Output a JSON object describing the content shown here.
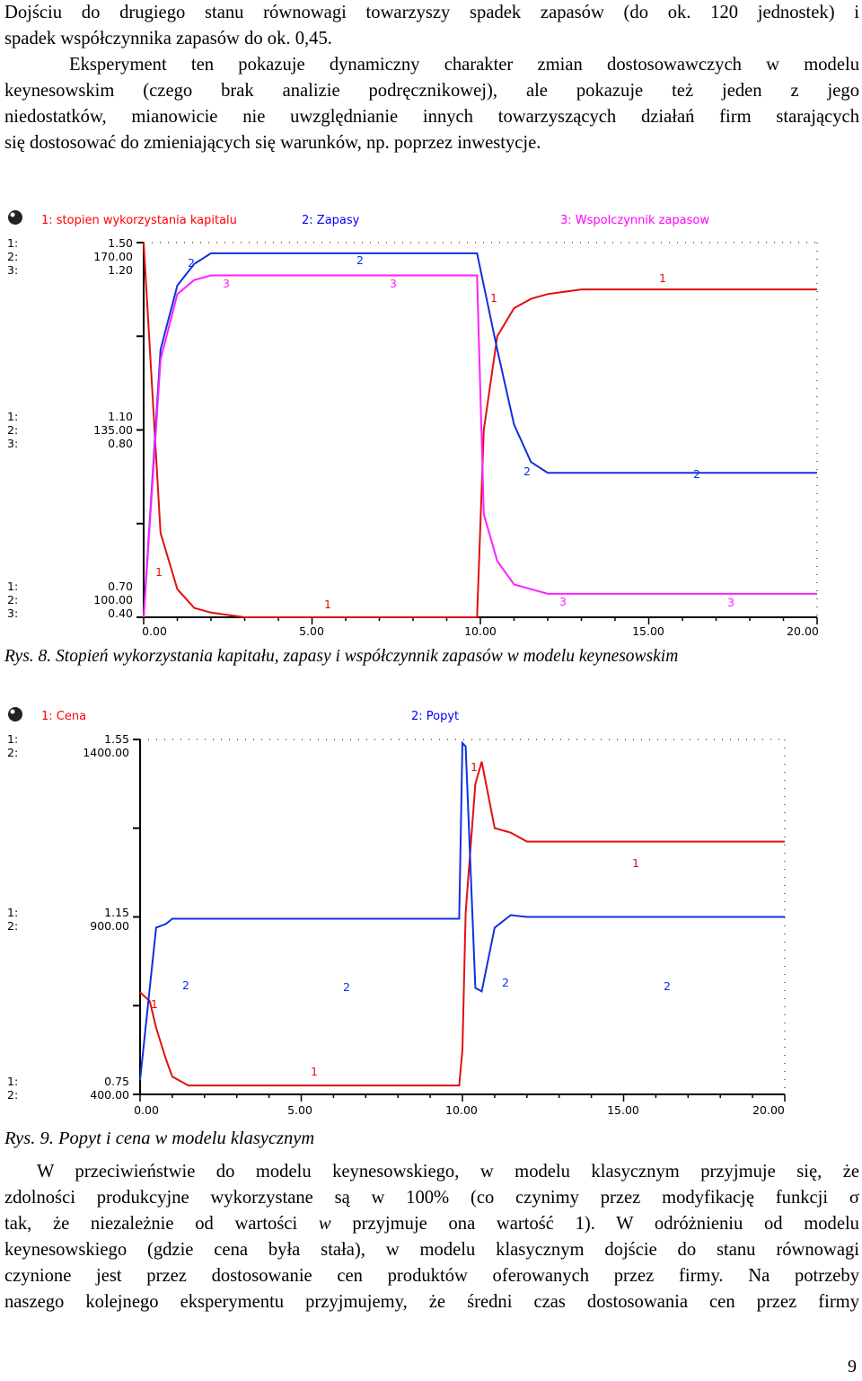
{
  "intro": {
    "line1": "Dojściu do drugiego stanu równowagi towarzyszy spadek zapasów (do ok. 120 jednostek) i",
    "line2": "spadek współczynnika zapasów do ok. 0,45.",
    "line3": "Eksperyment ten pokazuje dynamiczny charakter zmian dostosowawczych w modelu",
    "line4": "keynesowskim (czego brak analizie podręcznikowej), ale pokazuje też jeden z jego",
    "line5": "niedostatków, mianowicie nie uwzględnianie innych towarzyszących działań firm starających",
    "line6": "się dostosować do zmieniających się warunków, np. poprzez inwestycje."
  },
  "figure8": {
    "caption": "Rys. 8. Stopień wykorzystania kapitału, zapasy i współczynnik zapasów w modelu keynesowskim",
    "legend": [
      "1: stopien wykorzystania kapitalu",
      "2: Zapasy",
      "3: Wspolczynnik zapasow"
    ],
    "scales": {
      "top": [
        "1:",
        "1.50",
        "2:",
        "170.00",
        "3:",
        "1.20"
      ],
      "mid": [
        "1:",
        "1.10",
        "2:",
        "135.00",
        "3:",
        "0.80"
      ],
      "bot": [
        "1:",
        "0.70",
        "2:",
        "100.00",
        "3:",
        "0.40"
      ]
    },
    "marker_labels": [
      "1",
      "2",
      "3"
    ],
    "x_ticks": [
      "0.00",
      "5.00",
      "10.00",
      "15.00",
      "20.00"
    ]
  },
  "figure9": {
    "caption": "Rys. 9. Popyt i cena w modelu klasycznym",
    "legend": [
      "1: Cena",
      "2: Popyt"
    ],
    "scales": {
      "top": [
        "1:",
        "1.55",
        "2:",
        "1400.00"
      ],
      "mid": [
        "1:",
        "1.15",
        "2:",
        "900.00"
      ],
      "bot": [
        "1:",
        "0.75",
        "2:",
        "400.00"
      ]
    },
    "marker_labels": [
      "1",
      "2"
    ],
    "x_ticks": [
      "0.00",
      "5.00",
      "10.00",
      "15.00",
      "20.00"
    ]
  },
  "body2": {
    "line1": "W przeciwieństwie do modelu keynesowskiego, w modelu klasycznym przyjmuje się, że",
    "line2": "zdolności produkcyjne wykorzystane są w 100% (co czynimy przez modyfikację funkcji σ",
    "line3a": "tak, że niezależnie od wartości",
    "line3b": "w",
    "line3c": "przyjmuje ona wartość 1). W odróżnieniu od modelu",
    "line4": "keynesowskiego (gdzie cena była stała), w modelu klasycznym dojście do stanu równowagi",
    "line5": "czynione jest przez dostosowanie cen produktów oferowanych przez firmy. Na potrzeby",
    "line6": "naszego kolejnego eksperymentu przyjmujemy, że średni czas dostosowania cen przez firmy"
  },
  "page_number": "9",
  "colors": {
    "series1": "#e01010",
    "series2": "#1030e0",
    "series3": "#ff20ff",
    "legend_red": "#ff0000",
    "legend_blue": "#0000ff",
    "legend_magenta": "#ff00ff"
  },
  "chart_data": [
    {
      "type": "line",
      "title": "",
      "x": [
        0,
        0.5,
        1,
        1.5,
        2,
        3,
        5,
        9.9,
        10.1,
        10.5,
        11,
        11.5,
        12,
        13,
        15,
        20
      ],
      "xlim": [
        0,
        20
      ],
      "series": [
        {
          "name": "stopien wykorzystania kapitalu",
          "ylim": [
            0.7,
            1.5
          ],
          "values": [
            1.5,
            0.88,
            0.76,
            0.72,
            0.71,
            0.7,
            0.7,
            0.7,
            1.1,
            1.3,
            1.36,
            1.38,
            1.39,
            1.4,
            1.4,
            1.4
          ]
        },
        {
          "name": "Zapasy",
          "ylim": [
            100,
            170
          ],
          "values": [
            100,
            150,
            162,
            166,
            168,
            168,
            168,
            168,
            162,
            150,
            136,
            129,
            127,
            127,
            127,
            127
          ]
        },
        {
          "name": "Wspolczynnik zapasow",
          "ylim": [
            0.4,
            1.2
          ],
          "values": [
            0.4,
            0.95,
            1.09,
            1.12,
            1.13,
            1.13,
            1.13,
            1.13,
            0.62,
            0.52,
            0.47,
            0.46,
            0.45,
            0.45,
            0.45,
            0.45
          ]
        }
      ]
    },
    {
      "type": "line",
      "title": "",
      "x": [
        0,
        0.3,
        0.5,
        0.8,
        1,
        1.5,
        2,
        3,
        5,
        9.9,
        10,
        10.1,
        10.4,
        10.6,
        11,
        11.5,
        12,
        13,
        15,
        20
      ],
      "xlim": [
        0,
        20
      ],
      "series": [
        {
          "name": "Cena",
          "ylim": [
            0.75,
            1.55
          ],
          "values": [
            0.98,
            0.96,
            0.9,
            0.83,
            0.79,
            0.77,
            0.77,
            0.77,
            0.77,
            0.77,
            0.85,
            1.16,
            1.45,
            1.5,
            1.35,
            1.34,
            1.32,
            1.32,
            1.32,
            1.32
          ]
        },
        {
          "name": "Popyt",
          "ylim": [
            400,
            1400
          ],
          "values": [
            440,
            700,
            870,
            880,
            895,
            895,
            895,
            895,
            895,
            895,
            1390,
            1380,
            700,
            690,
            870,
            905,
            900,
            900,
            900,
            900
          ]
        }
      ]
    }
  ]
}
